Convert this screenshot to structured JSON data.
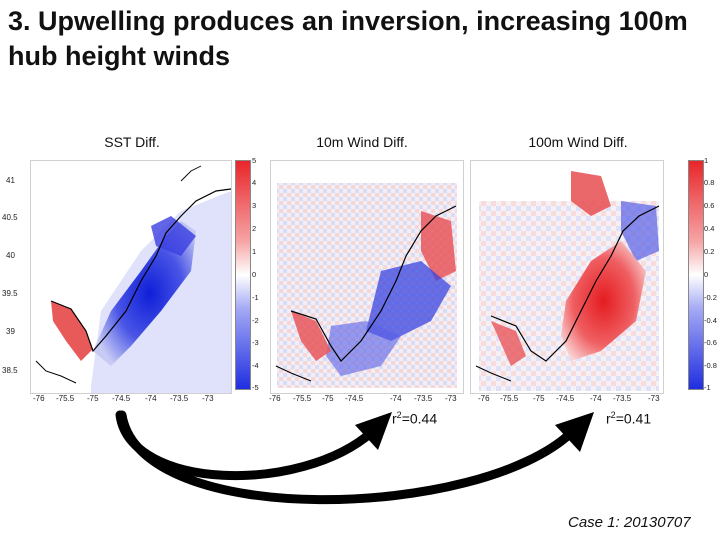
{
  "title": "3. Upwelling produces an inversion, increasing 100m hub height winds",
  "panels": [
    {
      "label": "SST Diff."
    },
    {
      "label": "10m Wind Diff."
    },
    {
      "label": "100m Wind Diff."
    }
  ],
  "sst_y_ticks": [
    "41",
    "40.5",
    "40",
    "39.5",
    "39",
    "38.5"
  ],
  "x_ticks_1": [
    "-76",
    "-75.5",
    "-75",
    "-74.5",
    "-74",
    "-73.5",
    "-73"
  ],
  "x_ticks_2": [
    "-76",
    "-75.5",
    "-75",
    "-74.5",
    "-74",
    "-73.5",
    "-73"
  ],
  "x_ticks_3": [
    "-76",
    "-75.5",
    "-75",
    "-74.5",
    "-74",
    "-73.5",
    "-73"
  ],
  "colorbar_10m": [
    "5",
    "4",
    "3",
    "2",
    "1",
    "0",
    "-1",
    "-2",
    "-3",
    "-4",
    "-5"
  ],
  "colorbar_100m": [
    "1",
    "0.8",
    "0.6",
    "0.4",
    "0.2",
    "0",
    "-0.2",
    "-0.4",
    "-0.6",
    "-0.8",
    "-1"
  ],
  "r2_10m": {
    "prefix": "r",
    "exp": "2",
    "value": "=0.44"
  },
  "r2_100m": {
    "prefix": "r",
    "exp": "2",
    "value": "=0.41"
  },
  "case_label": "Case 1: 20130707",
  "colors": {
    "warm": "#e8262a",
    "cool": "#1f2ee0",
    "neutral": "#ffffff",
    "arrow": "#000000"
  }
}
